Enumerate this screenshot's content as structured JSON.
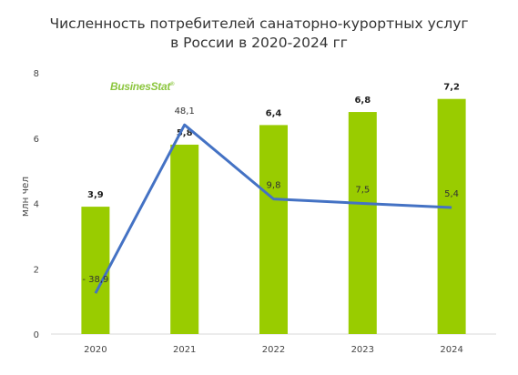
{
  "chart_data": {
    "type": "bar",
    "title_lines": [
      "Численность потребителей санаторно-курортных услуг",
      "в России в 2020-2024 гг"
    ],
    "ylabel": "млн чел",
    "ylim": [
      0,
      8
    ],
    "yticks": [
      "0",
      "2",
      "4",
      "6",
      "8"
    ],
    "categories": [
      "2020",
      "2021",
      "2022",
      "2023",
      "2024"
    ],
    "values": [
      3.9,
      5.8,
      6.4,
      6.8,
      7.2
    ],
    "value_labels": [
      "3,9",
      "5,8",
      "6,4",
      "6,8",
      "7,2"
    ],
    "growth_series": {
      "type": "line",
      "values": [
        -38.9,
        48.1,
        9.8,
        7.5,
        5.4
      ],
      "labels": [
        "- 38,9",
        "48,1",
        "9,8",
        "7,5",
        "5,4"
      ]
    },
    "grid": false,
    "legend": "none"
  },
  "logo": {
    "text": "BusinesStat",
    "mark": "®"
  },
  "colors": {
    "bar": "#99cc00",
    "line": "#4472c4",
    "axis": "#d9d9d9"
  }
}
